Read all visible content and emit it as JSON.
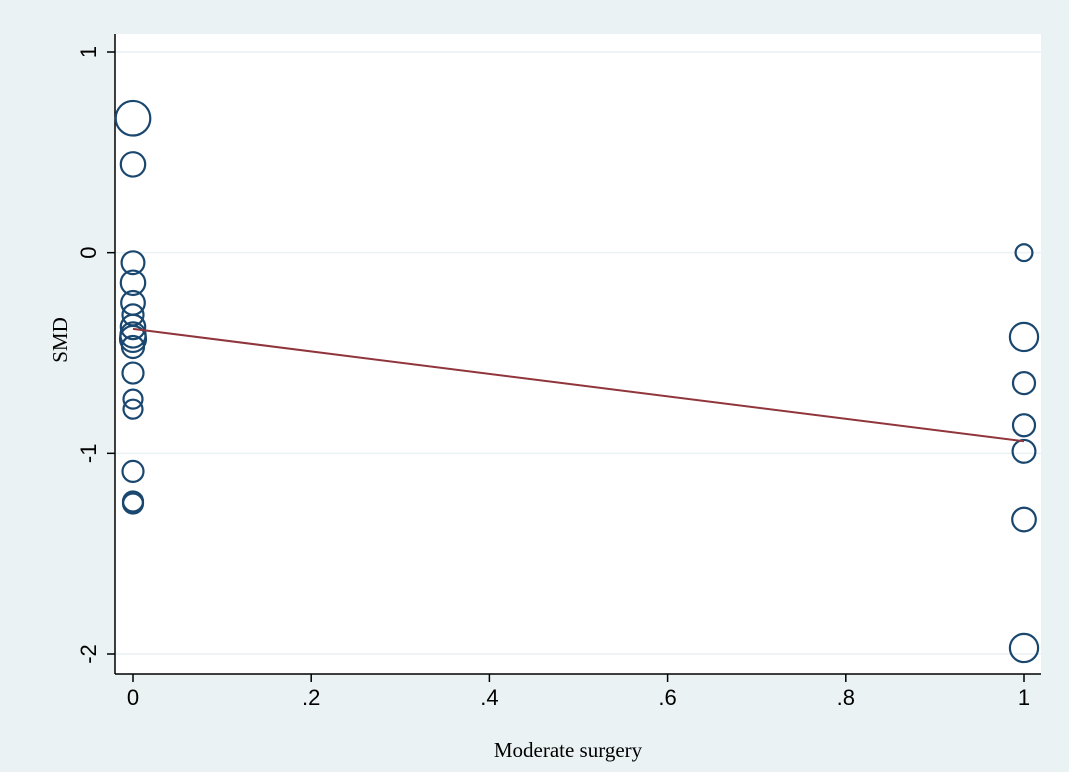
{
  "chart_data": {
    "type": "scatter",
    "xlabel": "Moderate surgery",
    "ylabel": "SMD",
    "xlim": [
      0,
      1
    ],
    "ylim": [
      -2,
      1
    ],
    "x_ticks": [
      "0",
      ".2",
      ".4",
      ".6",
      ".8",
      "1"
    ],
    "x_tick_values": [
      0,
      0.2,
      0.4,
      0.6,
      0.8,
      1
    ],
    "y_ticks": [
      "-2",
      "-1",
      "0",
      "1"
    ],
    "y_tick_values": [
      -2,
      -1,
      0,
      1
    ],
    "grid": true,
    "marker": "hollow circles, size proportional to weight",
    "colors": {
      "markers": "#1a476f",
      "fit_line": "#90353b",
      "background": "#eaf2f3"
    },
    "points": [
      {
        "x": 0,
        "y": 0.67,
        "weight": 3.0
      },
      {
        "x": 0,
        "y": 0.44,
        "weight": 1.5
      },
      {
        "x": 0,
        "y": -0.05,
        "weight": 1.3
      },
      {
        "x": 0,
        "y": -0.15,
        "weight": 1.5
      },
      {
        "x": 0,
        "y": -0.25,
        "weight": 1.4
      },
      {
        "x": 0,
        "y": -0.31,
        "weight": 1.1
      },
      {
        "x": 0,
        "y": -0.37,
        "weight": 1.5
      },
      {
        "x": 0,
        "y": -0.41,
        "weight": 1.6
      },
      {
        "x": 0,
        "y": -0.43,
        "weight": 1.7
      },
      {
        "x": 0,
        "y": -0.47,
        "weight": 1.2
      },
      {
        "x": 0,
        "y": -0.6,
        "weight": 1.1
      },
      {
        "x": 0,
        "y": -0.73,
        "weight": 0.9
      },
      {
        "x": 0,
        "y": -0.78,
        "weight": 0.9
      },
      {
        "x": 0,
        "y": -1.09,
        "weight": 1.1
      },
      {
        "x": 0,
        "y": -1.24,
        "weight": 1.0
      },
      {
        "x": 0,
        "y": -1.25,
        "weight": 1.0
      },
      {
        "x": 1,
        "y": 0.0,
        "weight": 0.7
      },
      {
        "x": 1,
        "y": -0.42,
        "weight": 2.0
      },
      {
        "x": 1,
        "y": -0.65,
        "weight": 1.2
      },
      {
        "x": 1,
        "y": -0.86,
        "weight": 1.2
      },
      {
        "x": 1,
        "y": -0.99,
        "weight": 1.3
      },
      {
        "x": 1,
        "y": -1.33,
        "weight": 1.4
      },
      {
        "x": 1,
        "y": -1.97,
        "weight": 2.0
      }
    ],
    "fit_line": {
      "x": [
        0,
        1
      ],
      "y": [
        -0.38,
        -0.94
      ]
    }
  }
}
